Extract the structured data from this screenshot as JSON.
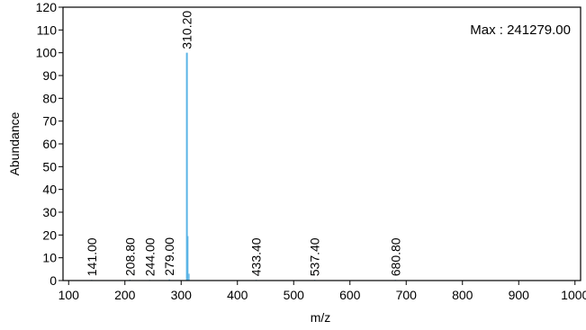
{
  "chart_data": {
    "type": "bar",
    "title": "",
    "xlabel": "m/z",
    "ylabel": "Abundance",
    "xlim": [
      90,
      1010
    ],
    "ylim": [
      0,
      120
    ],
    "x_ticks": [
      100,
      200,
      300,
      400,
      500,
      600,
      700,
      800,
      900,
      1000
    ],
    "y_ticks": [
      0,
      10,
      20,
      30,
      40,
      50,
      60,
      70,
      80,
      90,
      100,
      110,
      120
    ],
    "grid": false,
    "max_label": "Max : 241279.00",
    "peak_color": "#5ab4e6",
    "peaks": [
      {
        "x": 141.0,
        "y": 0.3
      },
      {
        "x": 208.8,
        "y": 0.4
      },
      {
        "x": 244.0,
        "y": 0.3
      },
      {
        "x": 279.0,
        "y": 0.5
      },
      {
        "x": 310.2,
        "y": 100
      },
      {
        "x": 312.0,
        "y": 19.5
      },
      {
        "x": 314.0,
        "y": 3
      },
      {
        "x": 433.4,
        "y": 0.3
      },
      {
        "x": 537.4,
        "y": 0.3
      },
      {
        "x": 680.8,
        "y": 0.3
      }
    ],
    "peak_labels": [
      {
        "x": 141.0,
        "text": "141.00"
      },
      {
        "x": 208.8,
        "text": "208.80"
      },
      {
        "x": 244.0,
        "text": "244.00"
      },
      {
        "x": 279.0,
        "text": "279.00"
      },
      {
        "x": 310.2,
        "text": "310.20"
      },
      {
        "x": 433.4,
        "text": "433.40"
      },
      {
        "x": 537.4,
        "text": "537.40"
      },
      {
        "x": 680.8,
        "text": "680.80"
      }
    ]
  }
}
